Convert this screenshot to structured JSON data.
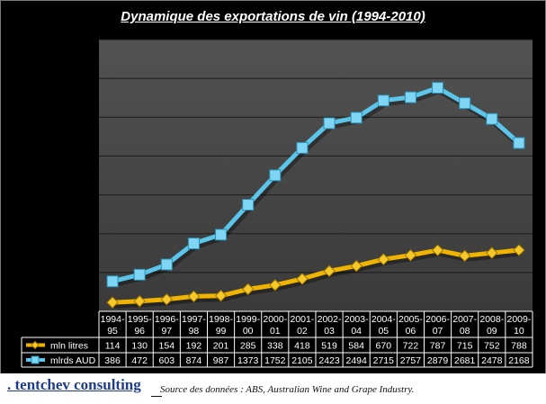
{
  "chart_data": {
    "type": "line",
    "title": "Dynamique des exportations de vin (1994-2010)",
    "categories": [
      [
        "1994-",
        "95"
      ],
      [
        "1995-",
        "96"
      ],
      [
        "1996-",
        "97"
      ],
      [
        "1997-",
        "98"
      ],
      [
        "1998-",
        "99"
      ],
      [
        "1999-",
        "00"
      ],
      [
        "2000-",
        "01"
      ],
      [
        "2001-",
        "02"
      ],
      [
        "2002-",
        "03"
      ],
      [
        "2003-",
        "04"
      ],
      [
        "2004-",
        "05"
      ],
      [
        "2005-",
        "06"
      ],
      [
        "2006-",
        "07"
      ],
      [
        "2007-",
        "08"
      ],
      [
        "2008-",
        "09"
      ],
      [
        "2009-",
        "10"
      ]
    ],
    "series": [
      {
        "name": "mln litres",
        "color": "#f0b400",
        "marker": "diamond",
        "values": [
          114,
          130,
          154,
          192,
          201,
          285,
          338,
          418,
          519,
          584,
          670,
          722,
          787,
          715,
          752,
          788
        ]
      },
      {
        "name": "mlrds AUD",
        "color": "#5bc6ea",
        "marker": "square",
        "values": [
          386,
          472,
          603,
          874,
          987,
          1373,
          1752,
          2105,
          2423,
          2494,
          2715,
          2757,
          2879,
          2681,
          2478,
          2168
        ]
      }
    ],
    "ylim": [
      0,
      3500
    ],
    "grid": true,
    "legend": "data-table"
  },
  "footer": {
    "brand": ". tentchev consulting",
    "source": "Source des données : ABS, Australian Wine and Grape Industry."
  }
}
